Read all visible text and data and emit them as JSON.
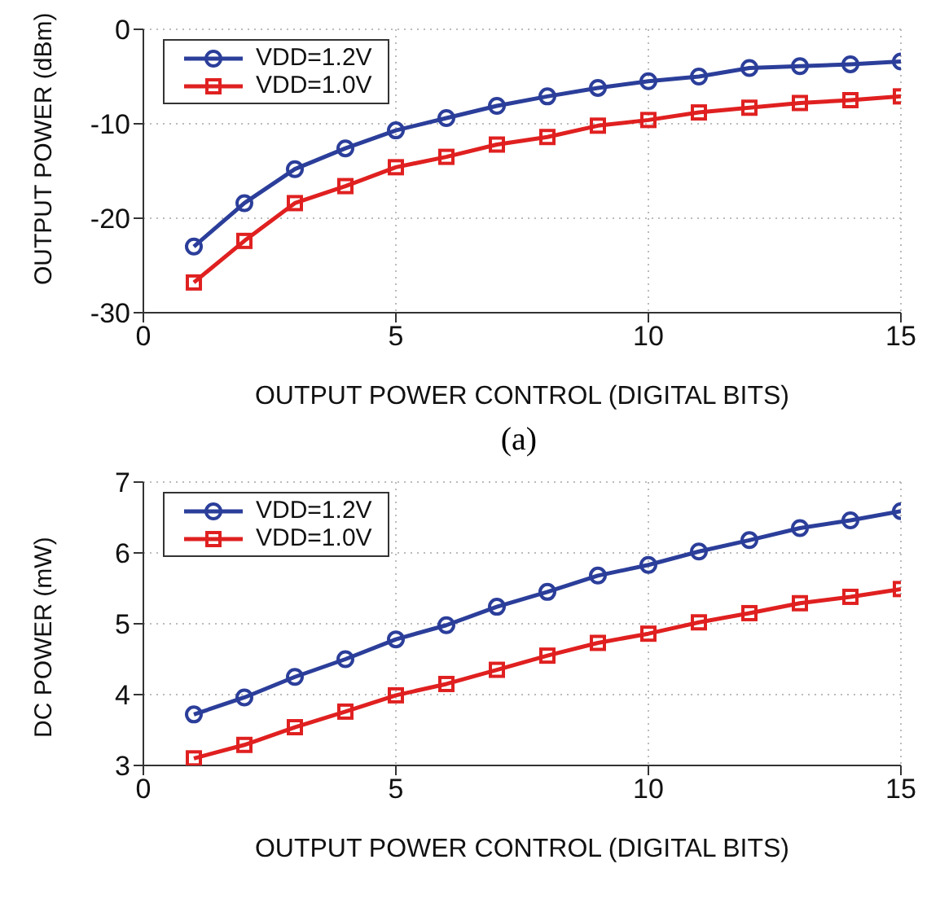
{
  "chart_data": [
    {
      "type": "line",
      "xlabel": "OUTPUT POWER CONTROL (DIGITAL BITS)",
      "ylabel": "OUTPUT POWER (dBm)",
      "annotations": [
        "(a)"
      ],
      "x": [
        1,
        2,
        3,
        4,
        5,
        6,
        7,
        8,
        9,
        10,
        11,
        12,
        13,
        14,
        15
      ],
      "series": [
        {
          "name": "VDD=1.2V",
          "color": "#2b3e9a",
          "marker": "circle",
          "values": [
            -23.0,
            -18.4,
            -14.8,
            -12.6,
            -10.7,
            -9.4,
            -8.1,
            -7.1,
            -6.2,
            -5.5,
            -5.0,
            -4.1,
            -3.9,
            -3.7,
            -3.4
          ]
        },
        {
          "name": "VDD=1.0V",
          "color": "#e02020",
          "marker": "square",
          "values": [
            -26.8,
            -22.4,
            -18.4,
            -16.6,
            -14.6,
            -13.5,
            -12.2,
            -11.4,
            -10.2,
            -9.6,
            -8.8,
            -8.3,
            -7.8,
            -7.5,
            -7.1
          ]
        }
      ],
      "xlim": [
        0,
        15
      ],
      "xticks": [
        0,
        5,
        10,
        15
      ],
      "ylim": [
        -30,
        0
      ],
      "yticks": [
        -30,
        -20,
        -10,
        0
      ],
      "grid": true,
      "legend": "top left",
      "line_style": "solid"
    },
    {
      "type": "line",
      "xlabel": "OUTPUT POWER CONTROL (DIGITAL BITS)",
      "ylabel": "DC POWER (mW)",
      "x": [
        1,
        2,
        3,
        4,
        5,
        6,
        7,
        8,
        9,
        10,
        11,
        12,
        13,
        14,
        15
      ],
      "series": [
        {
          "name": "VDD=1.2V",
          "color": "#2b3e9a",
          "marker": "circle",
          "values": [
            3.72,
            3.96,
            4.25,
            4.5,
            4.78,
            4.98,
            5.24,
            5.45,
            5.68,
            5.83,
            6.02,
            6.18,
            6.35,
            6.46,
            6.59
          ]
        },
        {
          "name": "VDD=1.0V",
          "color": "#e02020",
          "marker": "square",
          "values": [
            3.1,
            3.29,
            3.54,
            3.76,
            3.99,
            4.15,
            4.35,
            4.55,
            4.73,
            4.86,
            5.02,
            5.15,
            5.29,
            5.38,
            5.49
          ]
        }
      ],
      "xlim": [
        0,
        15
      ],
      "xticks": [
        0,
        5,
        10,
        15
      ],
      "ylim": [
        3,
        7
      ],
      "yticks": [
        3,
        4,
        5,
        6,
        7
      ],
      "grid": true,
      "legend": "top left",
      "line_style": "solid"
    }
  ]
}
